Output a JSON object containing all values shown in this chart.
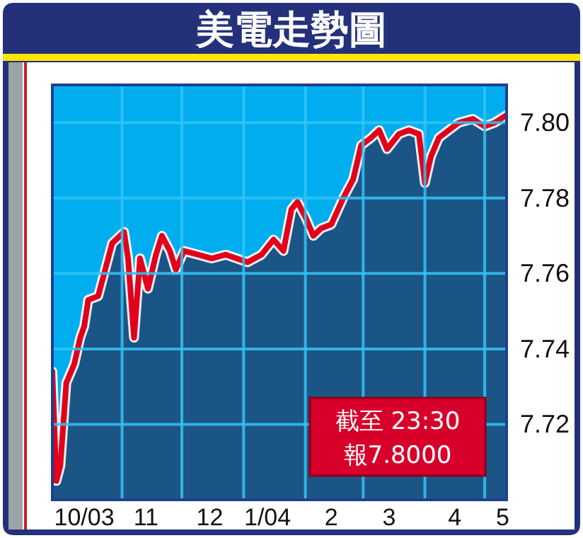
{
  "chart_data": {
    "type": "area",
    "title": "美電走勢圖",
    "x": [
      "2003-09-27",
      "2003-09-29",
      "2003-10-01",
      "2003-10-04",
      "2003-10-08",
      "2003-10-11",
      "2003-10-13",
      "2003-10-15",
      "2003-10-20",
      "2003-10-24",
      "2003-10-27",
      "2003-11-02",
      "2003-11-04",
      "2003-11-07",
      "2003-11-10",
      "2003-11-14",
      "2003-11-18",
      "2003-11-21",
      "2003-11-25",
      "2003-11-28",
      "2003-12-02",
      "2003-12-09",
      "2003-12-16",
      "2003-12-23",
      "2004-01-03",
      "2004-01-10",
      "2004-01-16",
      "2004-01-21",
      "2004-01-25",
      "2004-01-28",
      "2004-02-01",
      "2004-02-05",
      "2004-02-09",
      "2004-02-14",
      "2004-02-20",
      "2004-02-25",
      "2004-02-29",
      "2004-03-05",
      "2004-03-09",
      "2004-03-13",
      "2004-03-19",
      "2004-03-24",
      "2004-03-29",
      "2004-04-01",
      "2004-04-04",
      "2004-04-08",
      "2004-04-13",
      "2004-04-18",
      "2004-04-25",
      "2004-05-01",
      "2004-05-06",
      "2004-05-12"
    ],
    "series": [
      {
        "color": "#1b5586",
        "values": [
          7.734,
          7.705,
          7.709,
          7.731,
          7.736,
          7.743,
          7.746,
          7.753,
          7.754,
          7.762,
          7.768,
          7.771,
          7.764,
          7.743,
          7.764,
          7.756,
          7.765,
          7.77,
          7.766,
          7.761,
          7.766,
          7.765,
          7.764,
          7.765,
          7.763,
          7.765,
          7.769,
          7.766,
          7.777,
          7.779,
          7.775,
          7.77,
          7.772,
          7.773,
          7.78,
          7.785,
          7.794,
          7.796,
          7.798,
          7.793,
          7.797,
          7.798,
          7.797,
          7.784,
          7.791,
          7.796,
          7.798,
          7.8,
          7.801,
          7.799,
          7.8,
          7.802
        ]
      },
      {
        "type": "line",
        "color": "#e2001a",
        "values": [
          7.734,
          7.705,
          7.709,
          7.731,
          7.736,
          7.743,
          7.746,
          7.753,
          7.754,
          7.762,
          7.768,
          7.771,
          7.764,
          7.743,
          7.764,
          7.756,
          7.765,
          7.77,
          7.766,
          7.761,
          7.766,
          7.765,
          7.764,
          7.765,
          7.763,
          7.765,
          7.769,
          7.766,
          7.777,
          7.779,
          7.775,
          7.77,
          7.772,
          7.773,
          7.78,
          7.785,
          7.794,
          7.796,
          7.798,
          7.793,
          7.797,
          7.798,
          7.797,
          7.784,
          7.791,
          7.796,
          7.798,
          7.8,
          7.801,
          7.799,
          7.8,
          7.802
        ]
      }
    ],
    "xlim": [
      "2003-09-27",
      "2004-05-12"
    ],
    "xticks": [
      {
        "value": "2003-10-13",
        "label": "10/03"
      },
      {
        "value": "2003-11-01",
        "label": null
      },
      {
        "value": "2003-11-13",
        "label": "11"
      },
      {
        "value": "2003-12-01",
        "label": null
      },
      {
        "value": "2003-12-15",
        "label": "12"
      },
      {
        "value": "2004-01-01",
        "label": null
      },
      {
        "value": "2004-01-13",
        "label": "1/04"
      },
      {
        "value": "2004-02-01",
        "label": null
      },
      {
        "value": "2004-02-14",
        "label": "2"
      },
      {
        "value": "2004-03-01",
        "label": null
      },
      {
        "value": "2004-03-14",
        "label": "3"
      },
      {
        "value": "2004-04-01",
        "label": null
      },
      {
        "value": "2004-04-16",
        "label": "4"
      },
      {
        "value": "2004-05-01",
        "label": null
      },
      {
        "value": "2004-05-10",
        "label": "5"
      }
    ],
    "ylim": [
      7.7,
      7.81
    ],
    "yticks": [
      7.72,
      7.74,
      7.76,
      7.78,
      {
        "value": 7.8,
        "label": "7.80"
      }
    ],
    "grid": true,
    "bands": [
      {
        "axis": "y",
        "from": 7.7,
        "to": 7.81,
        "color": "#00aeef"
      }
    ],
    "annotations": [
      "截至 23:30",
      "報7.8000"
    ]
  }
}
